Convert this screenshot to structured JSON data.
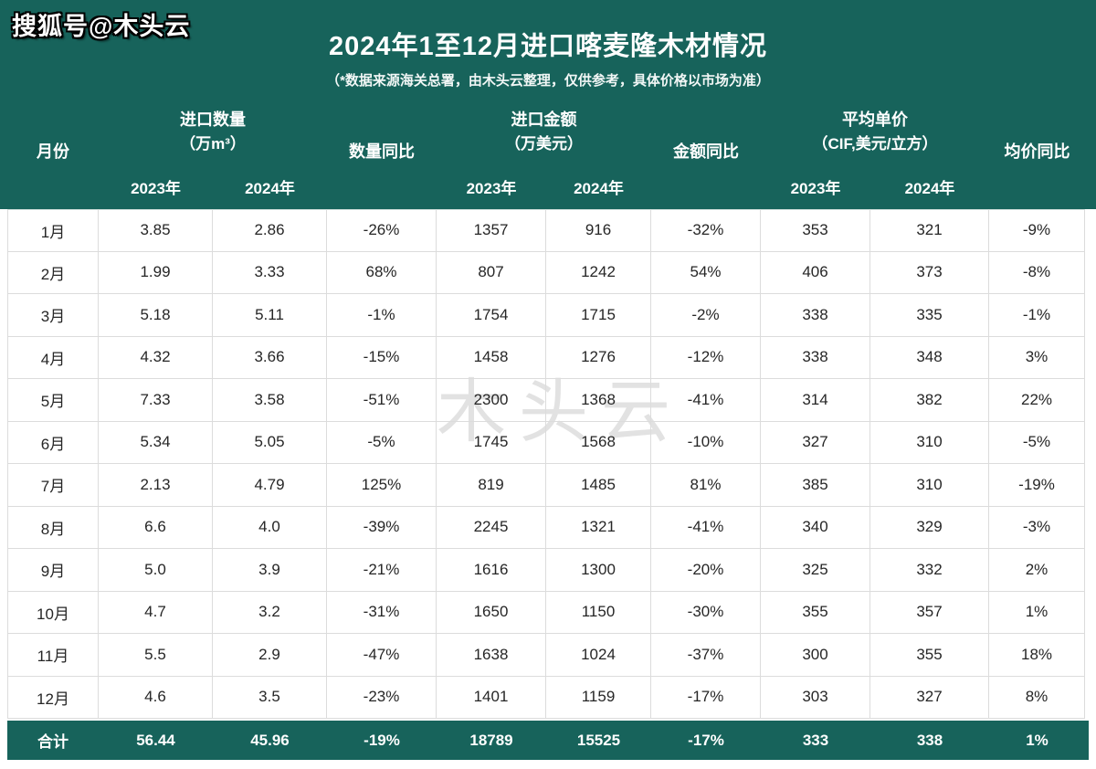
{
  "overlay": {
    "sohu_badge": "搜狐号@木头云",
    "center_watermark": "木头云"
  },
  "header": {
    "title": "2024年1至12月进口喀麦隆木材情况",
    "subtitle": "（*数据来源海关总署，由木头云整理，仅供参考，具体价格以市场为准）"
  },
  "colors": {
    "green": "#17635b",
    "up": "#f01414",
    "down": "#21756c"
  },
  "table": {
    "columns": {
      "month": "月份",
      "qty_group": "进口数量",
      "qty_unit": "（万m³）",
      "qty_yoy": "数量同比",
      "amount_group": "进口金额",
      "amount_unit": "（万美元）",
      "amount_yoy": "金额同比",
      "price_group": "平均单价",
      "price_unit": "（CIF,美元/立方）",
      "price_yoy": "均价同比",
      "year_2023": "2023年",
      "year_2024": "2024年"
    },
    "rows": [
      {
        "month": "1月",
        "q23": "3.85",
        "q24": "2.86",
        "qyoy": "-26%",
        "qtone": "down",
        "a23": "1357",
        "a24": "916",
        "ayoy": "-32%",
        "atone": "neutral",
        "p23": "353",
        "p24": "321",
        "pyoy": "-9%",
        "ptone": "down"
      },
      {
        "month": "2月",
        "q23": "1.99",
        "q24": "3.33",
        "qyoy": "68%",
        "qtone": "up",
        "a23": "807",
        "a24": "1242",
        "ayoy": "54%",
        "atone": "up",
        "p23": "406",
        "p24": "373",
        "pyoy": "-8%",
        "ptone": "down"
      },
      {
        "month": "3月",
        "q23": "5.18",
        "q24": "5.11",
        "qyoy": "-1%",
        "qtone": "down",
        "a23": "1754",
        "a24": "1715",
        "ayoy": "-2%",
        "atone": "down",
        "p23": "338",
        "p24": "335",
        "pyoy": "-1%",
        "ptone": "down"
      },
      {
        "month": "4月",
        "q23": "4.32",
        "q24": "3.66",
        "qyoy": "-15%",
        "qtone": "down",
        "a23": "1458",
        "a24": "1276",
        "ayoy": "-12%",
        "atone": "down",
        "p23": "338",
        "p24": "348",
        "pyoy": "3%",
        "ptone": "up"
      },
      {
        "month": "5月",
        "q23": "7.33",
        "q24": "3.58",
        "qyoy": "-51%",
        "qtone": "down",
        "a23": "2300",
        "a24": "1368",
        "ayoy": "-41%",
        "atone": "down",
        "p23": "314",
        "p24": "382",
        "pyoy": "22%",
        "ptone": "up"
      },
      {
        "month": "6月",
        "q23": "5.34",
        "q24": "5.05",
        "qyoy": "-5%",
        "qtone": "down",
        "a23": "1745",
        "a24": "1568",
        "ayoy": "-10%",
        "atone": "down",
        "p23": "327",
        "p24": "310",
        "pyoy": "-5%",
        "ptone": "down"
      },
      {
        "month": "7月",
        "q23": "2.13",
        "q24": "4.79",
        "qyoy": "125%",
        "qtone": "up",
        "a23": "819",
        "a24": "1485",
        "ayoy": "81%",
        "atone": "up",
        "p23": "385",
        "p24": "310",
        "pyoy": "-19%",
        "ptone": "down"
      },
      {
        "month": "8月",
        "q23": "6.6",
        "q24": "4.0",
        "qyoy": "-39%",
        "qtone": "down",
        "a23": "2245",
        "a24": "1321",
        "ayoy": "-41%",
        "atone": "down",
        "p23": "340",
        "p24": "329",
        "pyoy": "-3%",
        "ptone": "down"
      },
      {
        "month": "9月",
        "q23": "5.0",
        "q24": "3.9",
        "qyoy": "-21%",
        "qtone": "down",
        "a23": "1616",
        "a24": "1300",
        "ayoy": "-20%",
        "atone": "down",
        "p23": "325",
        "p24": "332",
        "pyoy": "2%",
        "ptone": "up"
      },
      {
        "month": "10月",
        "q23": "4.7",
        "q24": "3.2",
        "qyoy": "-31%",
        "qtone": "down",
        "a23": "1650",
        "a24": "1150",
        "ayoy": "-30%",
        "atone": "down",
        "p23": "355",
        "p24": "357",
        "pyoy": "1%",
        "ptone": "up"
      },
      {
        "month": "11月",
        "q23": "5.5",
        "q24": "2.9",
        "qyoy": "-47%",
        "qtone": "down",
        "a23": "1638",
        "a24": "1024",
        "ayoy": "-37%",
        "atone": "down",
        "p23": "300",
        "p24": "355",
        "pyoy": "18%",
        "ptone": "up"
      },
      {
        "month": "12月",
        "q23": "4.6",
        "q24": "3.5",
        "qyoy": "-23%",
        "qtone": "down",
        "a23": "1401",
        "a24": "1159",
        "ayoy": "-17%",
        "atone": "down",
        "p23": "303",
        "p24": "327",
        "pyoy": "8%",
        "ptone": "up"
      }
    ],
    "total": {
      "month": "合计",
      "q23": "56.44",
      "q24": "45.96",
      "qyoy": "-19%",
      "a23": "18789",
      "a24": "15525",
      "ayoy": "-17%",
      "p23": "333",
      "p24": "338",
      "pyoy": "1%"
    }
  }
}
